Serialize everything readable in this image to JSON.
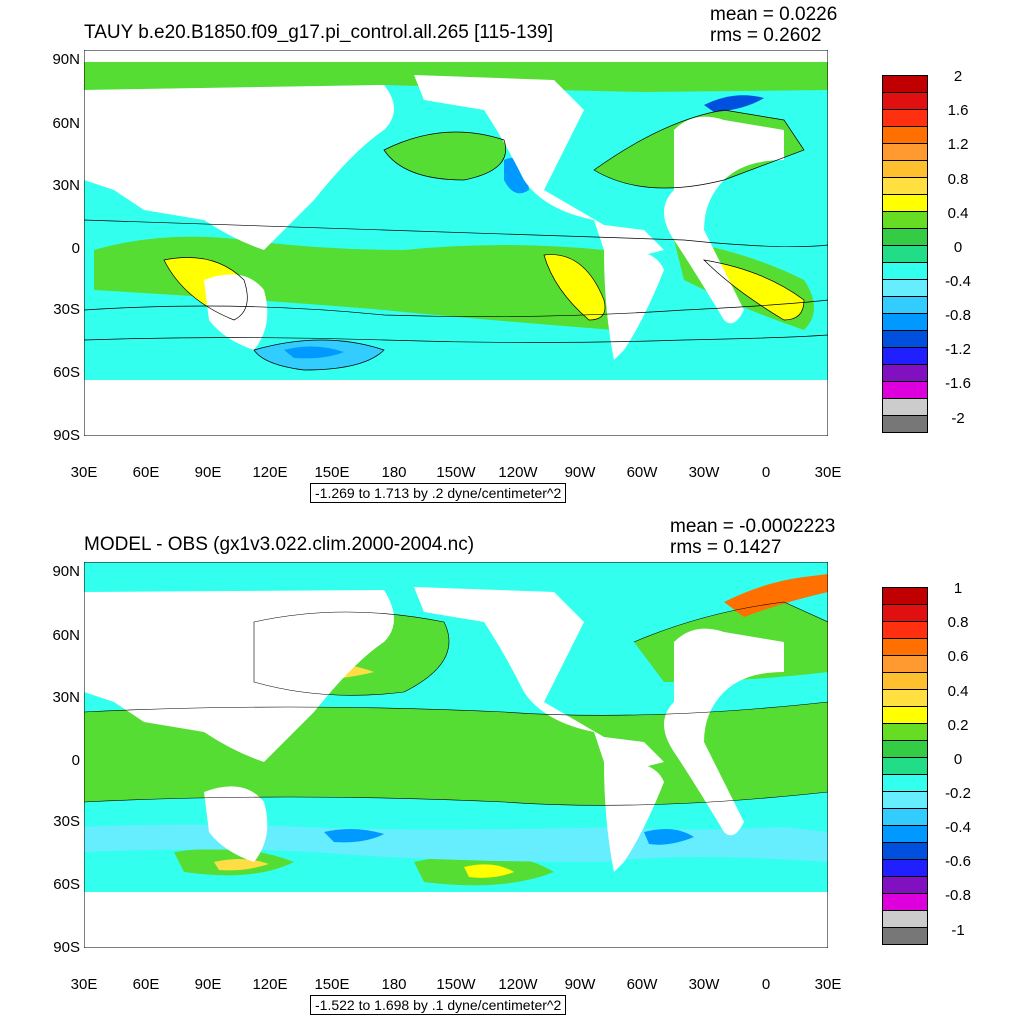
{
  "panels": [
    {
      "title": "TAUY b.e20.B1850.f09_g17.pi_control.all.265 [115-139]",
      "mean": "mean = 0.0226",
      "rms": "rms = 0.2602",
      "range": "-1.269 to 1.713 by .2 dyne/centimeter^2",
      "lat_labels": [
        "90N",
        "60N",
        "30N",
        "0",
        "30S",
        "60S",
        "90S"
      ],
      "lon_labels": [
        "30E",
        "60E",
        "90E",
        "120E",
        "150E",
        "180",
        "150W",
        "120W",
        "90W",
        "60W",
        "30W",
        "0",
        "30E"
      ],
      "legend_labels": [
        "2",
        "1.6",
        "1.2",
        "0.8",
        "0.4",
        "0",
        "-0.4",
        "-0.8",
        "-1.2",
        "-1.6",
        "-2"
      ]
    },
    {
      "title": "MODEL - OBS (gx1v3.022.clim.2000-2004.nc)",
      "mean": "mean = -0.0002223",
      "rms": "rms = 0.1427",
      "range": "-1.522 to 1.698 by .1 dyne/centimeter^2",
      "lat_labels": [
        "90N",
        "60N",
        "30N",
        "0",
        "30S",
        "60S",
        "90S"
      ],
      "lon_labels": [
        "30E",
        "60E",
        "90E",
        "120E",
        "150E",
        "180",
        "150W",
        "120W",
        "90W",
        "60W",
        "30W",
        "0",
        "30E"
      ],
      "legend_labels": [
        "1",
        "0.8",
        "0.6",
        "0.4",
        "0.2",
        "0",
        "-0.2",
        "-0.4",
        "-0.6",
        "-0.8",
        "-1"
      ]
    }
  ],
  "colorbar_colors": [
    "#c00000",
    "#e01010",
    "#ff3010",
    "#ff7000",
    "#ff9a30",
    "#ffc030",
    "#ffe040",
    "#ffff00",
    "#66dd22",
    "#33cc44",
    "#22dd88",
    "#33ffee",
    "#66eeff",
    "#33ccff",
    "#0099ff",
    "#0050e0",
    "#2020ff",
    "#8010c0",
    "#dd00dd",
    "#cccccc",
    "#777777"
  ]
}
